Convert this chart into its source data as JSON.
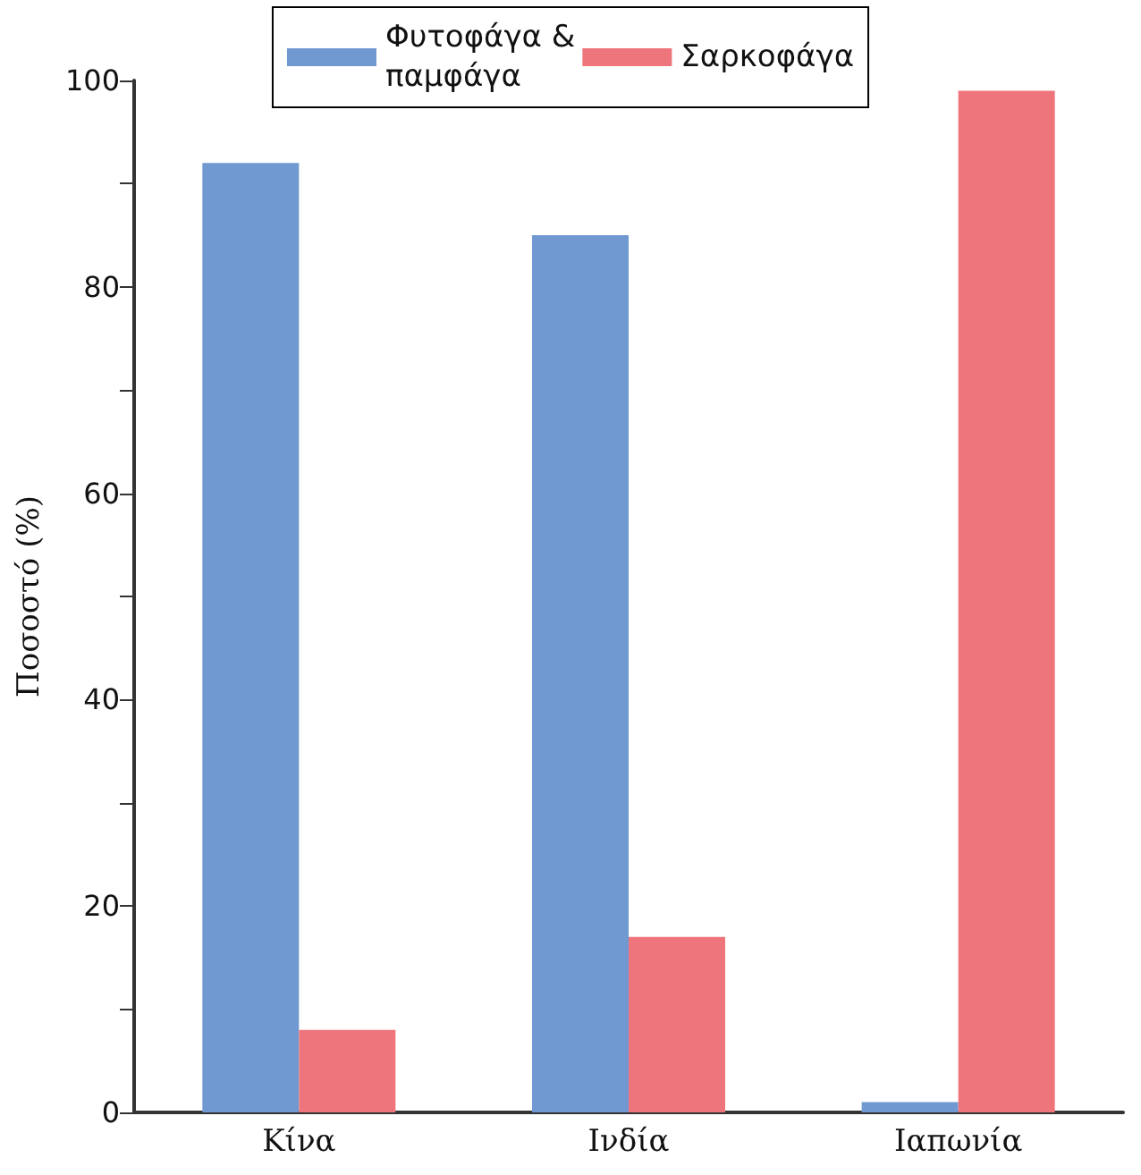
{
  "chart_data": {
    "type": "bar",
    "ylabel": "Ποσοστό (%)",
    "categories": [
      "Κίνα",
      "Ινδία",
      "Ιαπωνία"
    ],
    "series": [
      {
        "name": "Φυτοφάγα & παμφάγα",
        "color": "#6f99d0",
        "values": [
          92,
          85,
          1
        ]
      },
      {
        "name": "Σαρκοφάγα",
        "color": "#ee757c",
        "values": [
          8,
          17,
          99
        ]
      }
    ],
    "ylim": [
      0,
      100
    ],
    "yticks": [
      0,
      20,
      40,
      60,
      80,
      100
    ],
    "grid": false,
    "legend": "top"
  }
}
